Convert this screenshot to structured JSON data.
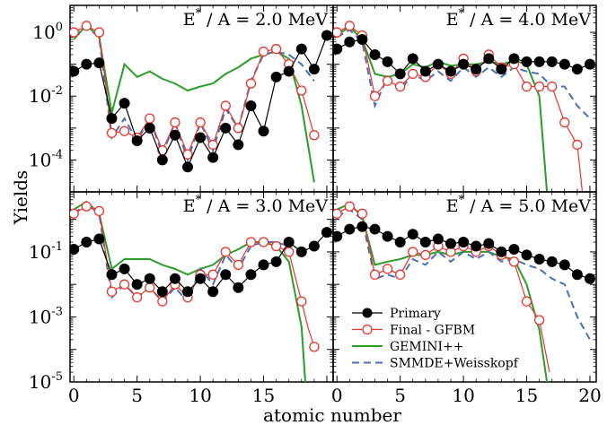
{
  "chart_data": {
    "type": "line",
    "ylabel": "Yields",
    "xlabel": "atomic number",
    "y_scale": "log",
    "grid": false,
    "legend_position": "bottom-right (panel E*/A = 5.0 MeV)",
    "series_styles": [
      {
        "name": "Primary",
        "color": "#000000",
        "marker": "filled-circle",
        "line": "solid"
      },
      {
        "name": "Final - GFBM",
        "color": "#e8352e",
        "marker": "open-circle",
        "line": "solid"
      },
      {
        "name": "GEMINI++",
        "color": "#2a9d2a",
        "marker": "none",
        "line": "solid"
      },
      {
        "name": "SMMDE+Weisskopf",
        "color": "#4a6fb5",
        "marker": "none",
        "line": "dashed"
      }
    ],
    "panels": [
      {
        "title": "E* / A = 2.0 MeV",
        "title_main": "E",
        "title_sup": "*",
        "title_rest": " / A = 2.0 MeV",
        "xlim": [
          -0.3,
          20.5
        ],
        "ylim": [
          1e-05,
          7
        ],
        "ytick_labels": [
          {
            "value": 1,
            "base": "10",
            "exp": "0"
          },
          {
            "value": 0.01,
            "base": "10",
            "exp": "-2"
          },
          {
            "value": 0.0001,
            "base": "10",
            "exp": "-4"
          }
        ],
        "series": [
          {
            "name": "Primary",
            "x": [
              0,
              1,
              2,
              3,
              4,
              5,
              6,
              7,
              8,
              9,
              10,
              11,
              12,
              13,
              14,
              15,
              16,
              17,
              18,
              19,
              20
            ],
            "values": [
              0.06,
              0.1,
              0.11,
              0.002,
              0.006,
              0.0004,
              0.001,
              0.0001,
              0.0006,
              6e-05,
              0.0005,
              0.00012,
              0.001,
              0.0003,
              0.005,
              0.0008,
              0.04,
              0.06,
              0.3,
              0.07,
              0.8
            ]
          },
          {
            "name": "Final - GFBM",
            "x": [
              0,
              1,
              2,
              3,
              4,
              5,
              6,
              7,
              8,
              9,
              10,
              11,
              12,
              13,
              14,
              15,
              16,
              17,
              18,
              19
            ],
            "values": [
              1.0,
              1.6,
              1.0,
              0.0007,
              0.0008,
              0.0005,
              0.002,
              0.0002,
              0.0015,
              0.00015,
              0.0015,
              0.0003,
              0.005,
              0.001,
              0.025,
              0.25,
              0.3,
              0.1,
              0.015,
              0.0006
            ]
          },
          {
            "name": "GEMINI++",
            "x": [
              0,
              1,
              2,
              3,
              4,
              5,
              6,
              7,
              8,
              9,
              10,
              11,
              12,
              13,
              14,
              15,
              16,
              17,
              18,
              19
            ],
            "values": [
              0.6,
              1.7,
              0.7,
              0.003,
              0.1,
              0.04,
              0.06,
              0.035,
              0.025,
              0.015,
              0.02,
              0.025,
              0.05,
              0.08,
              0.15,
              0.2,
              0.25,
              0.15,
              0.005,
              2e-05
            ]
          },
          {
            "name": "SMMDE+Weisskopf",
            "x": [
              0,
              1,
              2,
              3,
              4,
              5,
              6,
              7,
              8,
              9,
              10,
              11,
              12,
              13,
              14,
              15,
              16,
              17,
              18,
              19
            ],
            "values": [
              0.8,
              1.5,
              0.7,
              0.0005,
              0.002,
              0.0004,
              0.002,
              0.00015,
              0.0015,
              0.0001,
              0.0015,
              0.0002,
              0.004,
              0.001,
              0.03,
              0.2,
              0.25,
              0.2,
              0.1,
              0.03
            ]
          }
        ]
      },
      {
        "title": "E* / A = 4.0 MeV",
        "title_main": "E",
        "title_sup": "*",
        "title_rest": " / A = 4.0 MeV",
        "xlim": [
          -0.3,
          20.5
        ],
        "ylim": [
          1e-05,
          7
        ],
        "ytick_labels": [],
        "series": [
          {
            "name": "Primary",
            "x": [
              0,
              1,
              2,
              3,
              4,
              5,
              6,
              7,
              8,
              9,
              10,
              11,
              12,
              13,
              14,
              15,
              16,
              17,
              18,
              19,
              20
            ],
            "values": [
              0.3,
              0.5,
              0.6,
              0.2,
              0.12,
              0.05,
              0.15,
              0.06,
              0.1,
              0.06,
              0.1,
              0.07,
              0.15,
              0.07,
              0.15,
              0.12,
              0.12,
              0.12,
              0.1,
              0.07,
              0.1
            ]
          },
          {
            "name": "Final - GFBM",
            "x": [
              0,
              1,
              2,
              3,
              4,
              5,
              6,
              7,
              8,
              9,
              10,
              11,
              12,
              13,
              14,
              15,
              16,
              17,
              18,
              19,
              19.4
            ],
            "values": [
              1.0,
              1.6,
              0.8,
              0.01,
              0.03,
              0.02,
              0.05,
              0.04,
              0.1,
              0.05,
              0.15,
              0.06,
              0.2,
              0.08,
              0.1,
              0.02,
              0.02,
              0.02,
              0.0015,
              0.0003,
              1e-05
            ]
          },
          {
            "name": "GEMINI++",
            "x": [
              0,
              1,
              2,
              3,
              4,
              5,
              6,
              7,
              8,
              9,
              10,
              11,
              12,
              13,
              14,
              15,
              16,
              16.6
            ],
            "values": [
              0.8,
              1.5,
              0.6,
              0.05,
              0.04,
              0.05,
              0.1,
              0.08,
              0.12,
              0.09,
              0.1,
              0.1,
              0.12,
              0.1,
              0.13,
              0.1,
              0.01,
              1e-05
            ]
          },
          {
            "name": "SMMDE+Weisskopf",
            "x": [
              0,
              1,
              2,
              3,
              4,
              5,
              6,
              7,
              8,
              9,
              10,
              11,
              12,
              13,
              14,
              15,
              16,
              17,
              18,
              19,
              20
            ],
            "values": [
              0.7,
              1.2,
              0.5,
              0.005,
              0.04,
              0.015,
              0.05,
              0.03,
              0.06,
              0.03,
              0.08,
              0.04,
              0.08,
              0.04,
              0.08,
              0.06,
              0.05,
              0.02,
              0.02,
              0.005,
              0.002
            ]
          }
        ]
      },
      {
        "title": "E* / A = 3.0 MeV",
        "title_main": "E",
        "title_sup": "*",
        "title_rest": " / A = 3.0 MeV",
        "xlim": [
          -0.3,
          20.5
        ],
        "ylim": [
          1e-05,
          7
        ],
        "ytick_labels": [
          {
            "value": 0.1,
            "base": "10",
            "exp": "-1"
          },
          {
            "value": 0.001,
            "base": "10",
            "exp": "-3"
          },
          {
            "value": 1e-05,
            "base": "10",
            "exp": "-5"
          }
        ],
        "series": [
          {
            "name": "Primary",
            "x": [
              0,
              1,
              2,
              3,
              4,
              5,
              6,
              7,
              8,
              9,
              10,
              11,
              12,
              13,
              14,
              15,
              16,
              17,
              18,
              19,
              20
            ],
            "values": [
              0.12,
              0.2,
              0.25,
              0.02,
              0.03,
              0.01,
              0.015,
              0.006,
              0.015,
              0.006,
              0.015,
              0.006,
              0.02,
              0.008,
              0.02,
              0.04,
              0.05,
              0.2,
              0.1,
              0.15,
              0.4
            ]
          },
          {
            "name": "Final - GFBM",
            "x": [
              0,
              1,
              2,
              3,
              4,
              5,
              6,
              7,
              8,
              9,
              10,
              11,
              12,
              13,
              14,
              15,
              16,
              17,
              18,
              18.5,
              19
            ],
            "values": [
              1.5,
              2.5,
              1.8,
              0.006,
              0.01,
              0.004,
              0.008,
              0.003,
              0.01,
              0.004,
              0.02,
              0.02,
              0.1,
              0.04,
              0.2,
              0.2,
              0.15,
              0.1,
              0.003,
              0.0005,
              0.00012
            ]
          },
          {
            "name": "GEMINI++",
            "x": [
              0,
              1,
              2,
              3,
              4,
              5,
              6,
              7,
              8,
              9,
              10,
              11,
              12,
              13,
              14,
              15,
              16,
              17,
              18,
              18.3
            ],
            "values": [
              2.0,
              3.5,
              1.5,
              0.03,
              0.06,
              0.06,
              0.06,
              0.04,
              0.03,
              0.02,
              0.03,
              0.04,
              0.08,
              0.12,
              0.2,
              0.2,
              0.15,
              0.05,
              0.0005,
              1e-05
            ]
          },
          {
            "name": "SMMDE+Weisskopf",
            "x": [
              0,
              1,
              2,
              3,
              4,
              5,
              6,
              7,
              8,
              9,
              10,
              11,
              12,
              13,
              14,
              15,
              16,
              17
            ],
            "values": [
              1.5,
              3.0,
              1.5,
              0.004,
              0.01,
              0.004,
              0.008,
              0.003,
              0.008,
              0.003,
              0.03,
              0.01,
              0.08,
              0.03,
              0.15,
              0.2,
              0.2,
              0.15
            ]
          }
        ]
      },
      {
        "title": "E* / A = 5.0 MeV",
        "title_main": "E",
        "title_sup": "*",
        "title_rest": " / A = 5.0 MeV",
        "xlim": [
          -0.3,
          20.5
        ],
        "ylim": [
          1e-05,
          7
        ],
        "ytick_labels": [],
        "series": [
          {
            "name": "Primary",
            "x": [
              0,
              1,
              2,
              3,
              4,
              5,
              6,
              7,
              8,
              9,
              10,
              11,
              12,
              13,
              14,
              15,
              16,
              17,
              18,
              19,
              20
            ],
            "values": [
              0.3,
              0.5,
              0.6,
              0.5,
              0.3,
              0.2,
              0.35,
              0.2,
              0.25,
              0.18,
              0.2,
              0.15,
              0.18,
              0.1,
              0.12,
              0.08,
              0.06,
              0.05,
              0.04,
              0.02,
              0.015
            ]
          },
          {
            "name": "Final - GFBM",
            "x": [
              0,
              1,
              2,
              3,
              4,
              5,
              6,
              7,
              8,
              9,
              10,
              11,
              12,
              13,
              14,
              15,
              16,
              16.8
            ],
            "values": [
              1.5,
              2.5,
              1.5,
              0.02,
              0.03,
              0.02,
              0.1,
              0.08,
              0.15,
              0.1,
              0.15,
              0.1,
              0.15,
              0.08,
              0.05,
              0.003,
              0.0008,
              2e-05
            ]
          },
          {
            "name": "GEMINI++",
            "x": [
              0,
              1,
              2,
              3,
              4,
              5,
              6,
              7,
              8,
              9,
              10,
              11,
              12,
              13,
              14,
              15,
              16,
              16.6
            ],
            "values": [
              2.0,
              3.0,
              1.2,
              0.04,
              0.05,
              0.06,
              0.08,
              0.08,
              0.1,
              0.08,
              0.1,
              0.1,
              0.1,
              0.07,
              0.06,
              0.01,
              0.0004,
              1e-05
            ]
          },
          {
            "name": "SMMDE+Weisskopf",
            "x": [
              0,
              1,
              2,
              3,
              4,
              5,
              6,
              7,
              8,
              9,
              10,
              11,
              12,
              13,
              14,
              15,
              16,
              17,
              18,
              19,
              20
            ],
            "values": [
              1.2,
              2.0,
              1.0,
              0.015,
              0.02,
              0.015,
              0.06,
              0.04,
              0.1,
              0.05,
              0.1,
              0.06,
              0.1,
              0.05,
              0.06,
              0.04,
              0.03,
              0.015,
              0.01,
              0.001,
              0.0002
            ]
          }
        ]
      }
    ],
    "xticks": [
      0,
      5,
      10,
      15,
      20
    ],
    "xtick_labels": [
      "0",
      "5",
      "10",
      "15",
      "20"
    ],
    "legend": {
      "entries": [
        "Primary",
        "Final - GFBM",
        "GEMINI++",
        "SMMDE+Weisskopf"
      ]
    }
  }
}
